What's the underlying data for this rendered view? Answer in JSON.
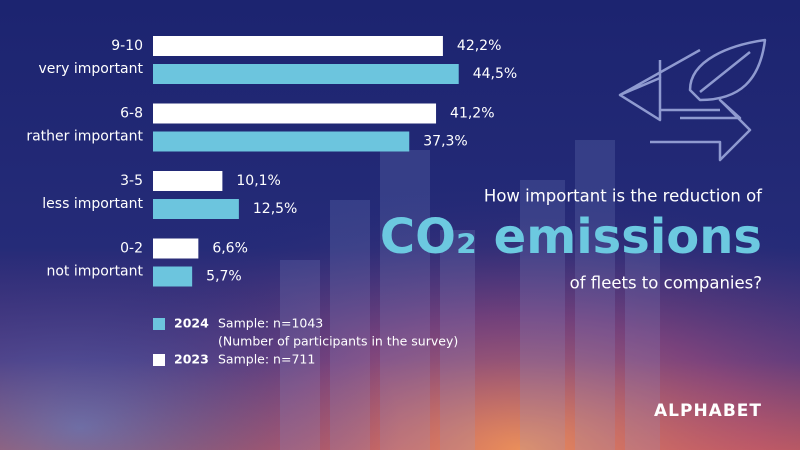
{
  "chart_data": {
    "type": "bar",
    "orientation": "horizontal",
    "title_lines": [
      "How important is the reduction of",
      "CO₂ emissions",
      "of fleets to companies?"
    ],
    "categories": [
      "9-10",
      "6-8",
      "3-5",
      "0-2"
    ],
    "category_descriptions": [
      "very important",
      "rather important",
      "less important",
      "not important"
    ],
    "series": [
      {
        "name": "2023",
        "color": "#ffffff",
        "sample": "Sample: n=711",
        "values": [
          42.2,
          41.2,
          10.1,
          6.6
        ],
        "value_labels": [
          "42,2%",
          "41,2%",
          "10,1%",
          "6,6%"
        ]
      },
      {
        "name": "2024",
        "color": "#6cc5de",
        "sample": "Sample: n=1043",
        "note": "(Number of participants in the survey)",
        "values": [
          44.5,
          37.3,
          12.5,
          5.7
        ],
        "value_labels": [
          "44,5%",
          "37,3%",
          "12,5%",
          "5,7%"
        ]
      }
    ],
    "xlim": [
      0,
      100
    ],
    "brand": "ALPHABET"
  }
}
